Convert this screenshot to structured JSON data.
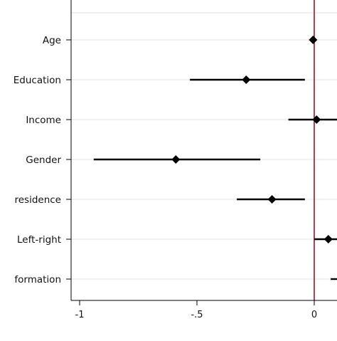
{
  "chart_data": {
    "type": "scatter",
    "subtype": "coefficient-plot",
    "title": "",
    "xlabel": "",
    "ylabel": "",
    "xlim": [
      -1.02,
      0.1
    ],
    "x_ticks": [
      -1,
      -0.5,
      0
    ],
    "x_tick_labels": [
      "-1",
      "-.5",
      "0"
    ],
    "grid": "horizontal",
    "reference_line": {
      "x": 0,
      "color": "#a0102a"
    },
    "categories": [
      "Age",
      "Education",
      "Income",
      "Gender",
      "residence",
      "Left-right",
      "formation"
    ],
    "series": [
      {
        "points": [
          {
            "label": "Age",
            "estimate": -0.005,
            "ci_low": -0.005,
            "ci_high": -0.005
          },
          {
            "label": "Education",
            "estimate": -0.29,
            "ci_low": -0.53,
            "ci_high": -0.04
          },
          {
            "label": "Income",
            "estimate": 0.01,
            "ci_low": -0.11,
            "ci_high": 0.1
          },
          {
            "label": "Gender",
            "estimate": -0.59,
            "ci_low": -0.94,
            "ci_high": -0.23
          },
          {
            "label": "residence",
            "estimate": -0.18,
            "ci_low": -0.33,
            "ci_high": -0.04
          },
          {
            "label": "Left-right",
            "estimate": 0.06,
            "ci_low": 0.0,
            "ci_high": 0.1
          },
          {
            "label": "formation",
            "estimate": null,
            "ci_low": 0.07,
            "ci_high": 0.1
          }
        ]
      }
    ]
  },
  "colors": {
    "background": "#ffffff",
    "gridline": "#dde3ea",
    "marker": "#000000",
    "reference_line": "#a0102a",
    "axis": "#000000"
  }
}
